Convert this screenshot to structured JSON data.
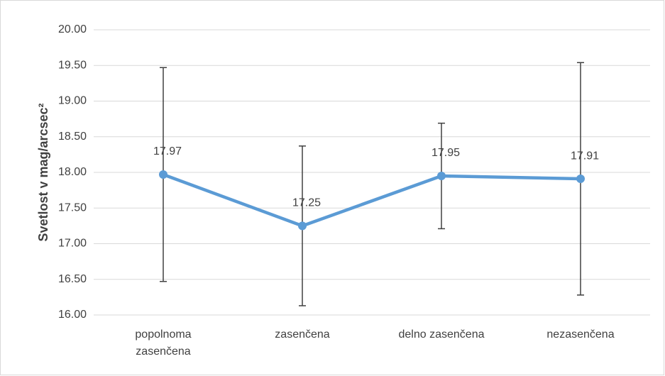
{
  "chart_data": {
    "type": "line",
    "ylabel": "Svetlost v mag/arcsec²",
    "categories": [
      "popolnoma zasenčena",
      "zasenčena",
      "delno zasenčena",
      "nezasenčena"
    ],
    "values": [
      17.97,
      17.25,
      17.95,
      17.91
    ],
    "errors": [
      1.5,
      1.12,
      0.74,
      1.63
    ],
    "color": "#5b9bd5",
    "error_color": "#404040",
    "ylim": [
      16,
      20
    ],
    "yticks": [
      {
        "value": 16,
        "label": "16.00"
      },
      {
        "value": 16.5,
        "label": "16.50"
      },
      {
        "value": 17,
        "label": "17.00"
      },
      {
        "value": 17.5,
        "label": "17.50"
      },
      {
        "value": 18,
        "label": "18.00"
      },
      {
        "value": 18.5,
        "label": "18.50"
      },
      {
        "value": 19,
        "label": "19.00"
      },
      {
        "value": 19.5,
        "label": "19.50"
      },
      {
        "value": 20,
        "label": "20.00"
      }
    ],
    "grid": true
  }
}
